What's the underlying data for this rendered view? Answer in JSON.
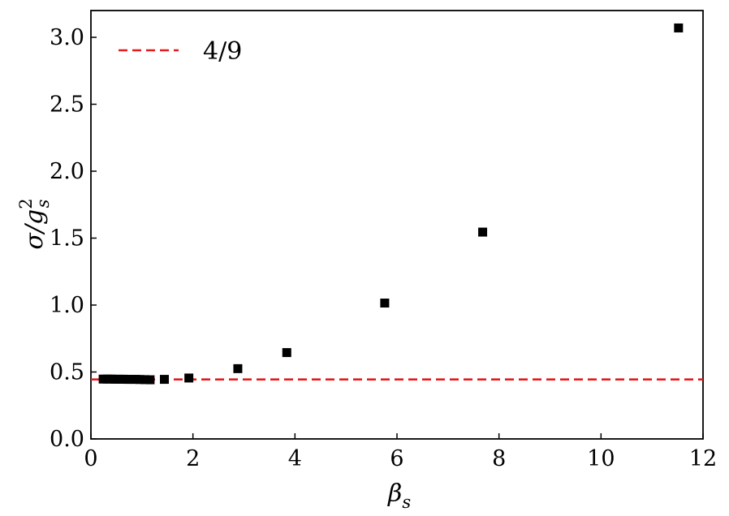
{
  "chart_data": {
    "type": "scatter",
    "xlabel": "β",
    "xlabel_sub": "s",
    "ylabel_pre": "σ/g",
    "ylabel_sup": "2",
    "ylabel_sub": "s",
    "xlim": [
      0,
      12
    ],
    "ylim": [
      0,
      3.2
    ],
    "xticks": [
      0,
      2,
      4,
      6,
      8,
      10,
      12
    ],
    "yticks": [
      0.0,
      0.5,
      1.0,
      1.5,
      2.0,
      2.5,
      3.0
    ],
    "xtick_labels": [
      "0",
      "2",
      "4",
      "6",
      "8",
      "10",
      "12"
    ],
    "ytick_labels": [
      "0.0",
      "0.5",
      "1.0",
      "1.5",
      "2.0",
      "2.5",
      "3.0"
    ],
    "grid": false,
    "legend_position": "top-left",
    "series": [
      {
        "marker": "square",
        "color": "#000000",
        "x": [
          0.24,
          0.32,
          0.4,
          0.48,
          0.56,
          0.64,
          0.72,
          0.8,
          0.88,
          0.96,
          1.06,
          1.16,
          1.44,
          1.92,
          2.88,
          3.84,
          5.76,
          7.68,
          11.52
        ],
        "y": [
          0.447,
          0.447,
          0.447,
          0.446,
          0.446,
          0.446,
          0.445,
          0.445,
          0.445,
          0.444,
          0.443,
          0.442,
          0.445,
          0.455,
          0.525,
          0.645,
          1.015,
          1.545,
          3.07
        ]
      }
    ],
    "reference_line": {
      "name": "4/9",
      "y": 0.4444,
      "style": "dashed",
      "color": "#e41a1c"
    }
  }
}
